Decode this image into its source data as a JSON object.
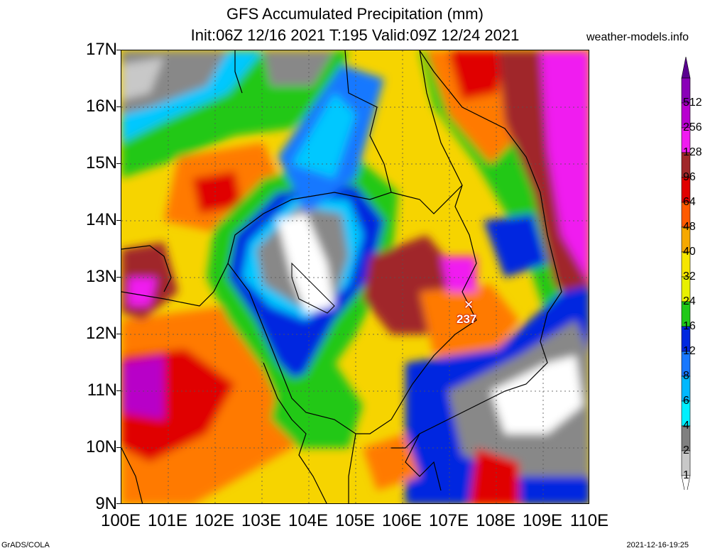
{
  "header": {
    "title_line1": "GFS Accumulated Precipitation (mm)",
    "title_line2": "Init:06Z 12/16 2021 T:195 Valid:09Z 12/24 2021",
    "site": "weather-models.info"
  },
  "axes": {
    "lat_labels": [
      "17N",
      "16N",
      "15N",
      "14N",
      "13N",
      "12N",
      "11N",
      "10N",
      "9N"
    ],
    "lon_labels": [
      "100E",
      "101E",
      "102E",
      "103E",
      "104E",
      "105E",
      "106E",
      "107E",
      "108E",
      "109E",
      "110E"
    ]
  },
  "colorbar": {
    "labels": [
      "512",
      "256",
      "128",
      "96",
      "64",
      "48",
      "40",
      "32",
      "24",
      "16",
      "12",
      "8",
      "6",
      "4",
      "2",
      "1"
    ],
    "colors": [
      "#8a00b8",
      "#b800d0",
      "#f01cf0",
      "#a0282a",
      "#e00000",
      "#ff5a00",
      "#f6a800",
      "#f6e600",
      "#e8f000",
      "#20c818",
      "#0028e0",
      "#1878ff",
      "#00b8ff",
      "#00f0ff",
      "#808080",
      "#c8c8c8"
    ]
  },
  "marker": {
    "value": "237"
  },
  "footer": {
    "left": "GrADS/COLA",
    "right": "2021-12-16-19:25"
  }
}
